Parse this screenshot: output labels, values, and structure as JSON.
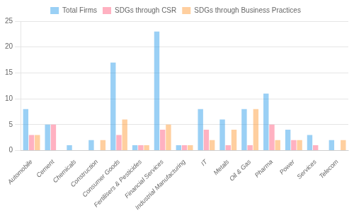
{
  "chart_data": {
    "type": "bar",
    "categories": [
      "Automobile",
      "Cement",
      "Chemicals",
      "Construction",
      "Consumer Goods",
      "Fertilisers & Pesticides",
      "Financial Services",
      "Industrial Manufacturing",
      "IT",
      "Metals",
      "Oil & Gas",
      "Pharma",
      "Power",
      "Services",
      "Telecom"
    ],
    "series": [
      {
        "name": "Total Firms",
        "values": [
          8,
          5,
          1,
          2,
          17,
          1,
          23,
          1,
          8,
          6,
          8,
          11,
          4,
          3,
          2
        ]
      },
      {
        "name": "SDGs through CSR",
        "values": [
          3,
          5,
          0,
          0,
          3,
          1,
          4,
          1,
          4,
          1,
          1,
          5,
          2,
          1,
          0
        ]
      },
      {
        "name": "SDGs through Business Practices",
        "values": [
          3,
          0,
          0,
          2,
          6,
          1,
          5,
          1,
          2,
          4,
          8,
          2,
          2,
          0,
          2
        ]
      }
    ],
    "ylim": [
      0,
      25
    ],
    "yticks": [
      0,
      5,
      10,
      15,
      20,
      25
    ],
    "grid": true,
    "legend": "top"
  }
}
